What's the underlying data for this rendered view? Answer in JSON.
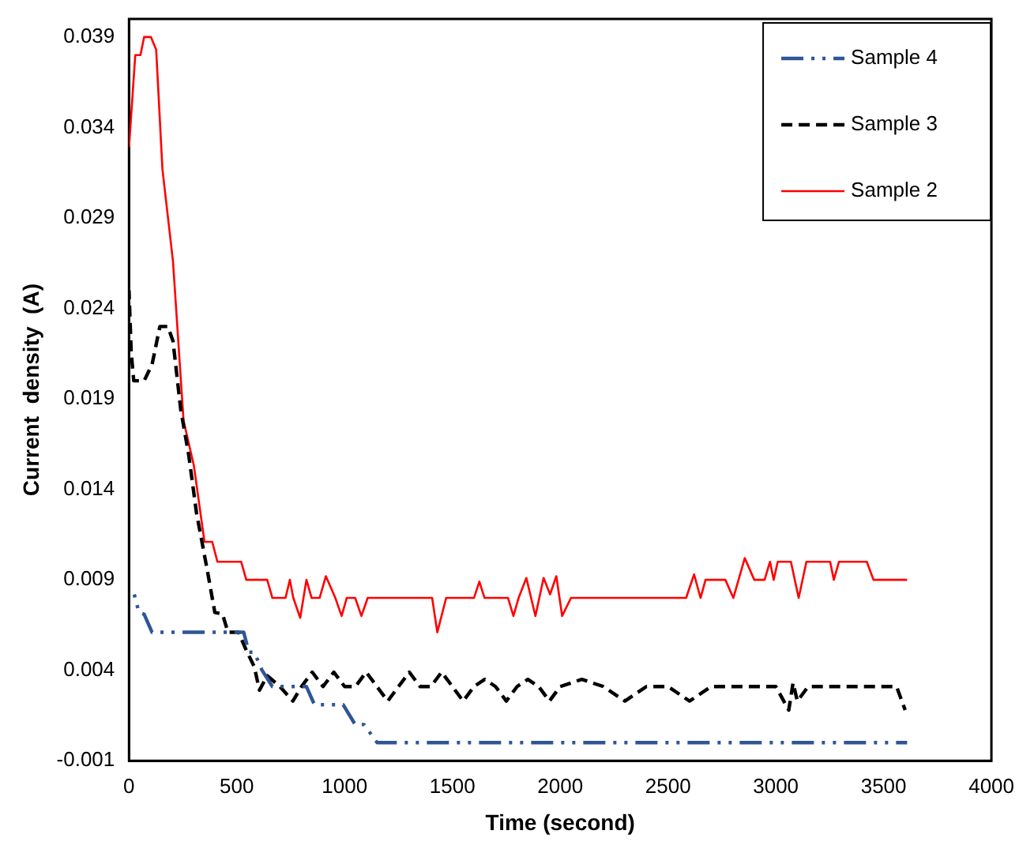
{
  "chart_data": {
    "type": "line",
    "xlabel": "Time (second)",
    "ylabel": "Current  density  (A)",
    "xlim": [
      0,
      4000
    ],
    "xticks": [
      0,
      500,
      1000,
      1500,
      2000,
      2500,
      3000,
      3500,
      4000
    ],
    "ylim": [
      -0.001,
      0.04
    ],
    "yticks": [
      -0.001,
      0.004,
      0.009,
      0.014,
      0.019,
      0.024,
      0.029,
      0.034,
      0.039
    ],
    "grid": false,
    "legend": "top right",
    "marker": "none",
    "series": [
      {
        "name": "Sample 4",
        "color": "#2f5597",
        "line_style": "dashdot",
        "x": [
          0,
          22,
          46,
          70,
          107,
          423,
          532,
          556,
          581,
          617,
          665,
          823,
          860,
          993,
          1049,
          1090,
          1151,
          3609
        ],
        "values": [
          0.0083,
          0.0083,
          0.0072,
          0.0071,
          0.0061,
          0.0061,
          0.0061,
          0.005,
          0.005,
          0.004,
          0.0031,
          0.0031,
          0.0021,
          0.0021,
          0.001,
          0.001,
          0.0,
          0.0
        ]
      },
      {
        "name": "Sample 3",
        "color": "#000000",
        "line_style": "dashed",
        "x": [
          0,
          10,
          22,
          70,
          107,
          143,
          180,
          204,
          240,
          277,
          313,
          362,
          398,
          434,
          459,
          508,
          544,
          581,
          605,
          641,
          700,
          760,
          800,
          850,
          900,
          950,
          1000,
          1050,
          1100,
          1150,
          1200,
          1250,
          1300,
          1350,
          1400,
          1450,
          1500,
          1550,
          1600,
          1650,
          1700,
          1750,
          1800,
          1850,
          1900,
          1950,
          2000,
          2100,
          2200,
          2300,
          2400,
          2500,
          2600,
          2700,
          2800,
          3000,
          3060,
          3080,
          3100,
          3150,
          3200,
          3400,
          3560,
          3600
        ],
        "values": [
          0.025,
          0.0216,
          0.02,
          0.02,
          0.0209,
          0.023,
          0.023,
          0.0222,
          0.0184,
          0.0159,
          0.0127,
          0.0096,
          0.0072,
          0.0071,
          0.0061,
          0.0061,
          0.0051,
          0.0042,
          0.0029,
          0.0037,
          0.0031,
          0.0023,
          0.0031,
          0.0039,
          0.0031,
          0.0039,
          0.0031,
          0.0031,
          0.0039,
          0.0031,
          0.0023,
          0.0031,
          0.0039,
          0.0031,
          0.0031,
          0.0039,
          0.0031,
          0.0023,
          0.0031,
          0.0035,
          0.0031,
          0.0023,
          0.0031,
          0.0035,
          0.0031,
          0.0023,
          0.0031,
          0.0035,
          0.0031,
          0.0023,
          0.0031,
          0.0031,
          0.0023,
          0.0031,
          0.0031,
          0.0031,
          0.0018,
          0.0033,
          0.0023,
          0.0031,
          0.0031,
          0.0031,
          0.0031,
          0.0018
        ]
      },
      {
        "name": "Sample 2",
        "color": "#ff0000",
        "line_style": "solid",
        "x": [
          0,
          29,
          53,
          70,
          102,
          126,
          155,
          204,
          253,
          301,
          350,
          386,
          410,
          520,
          544,
          641,
          665,
          726,
          746,
          762,
          794,
          823,
          847,
          884,
          913,
          957,
          986,
          1010,
          1049,
          1078,
          1107,
          1406,
          1430,
          1471,
          1600,
          1625,
          1649,
          1758,
          1783,
          1807,
          1843,
          1885,
          1923,
          1953,
          1982,
          2009,
          2050,
          2584,
          2621,
          2651,
          2674,
          2766,
          2803,
          2856,
          2900,
          2948,
          2973,
          2990,
          3009,
          3070,
          3106,
          3142,
          3252,
          3269,
          3293,
          3422,
          3453,
          3609
        ],
        "values": [
          0.0329,
          0.038,
          0.038,
          0.039,
          0.039,
          0.0383,
          0.0317,
          0.0266,
          0.0178,
          0.0153,
          0.0111,
          0.0111,
          0.01,
          0.01,
          0.009,
          0.009,
          0.008,
          0.008,
          0.009,
          0.008,
          0.0069,
          0.009,
          0.008,
          0.008,
          0.0092,
          0.008,
          0.007,
          0.008,
          0.008,
          0.007,
          0.008,
          0.008,
          0.0061,
          0.008,
          0.008,
          0.0089,
          0.008,
          0.008,
          0.007,
          0.008,
          0.0091,
          0.007,
          0.0091,
          0.0082,
          0.0092,
          0.007,
          0.008,
          0.008,
          0.0093,
          0.008,
          0.009,
          0.009,
          0.008,
          0.0102,
          0.009,
          0.009,
          0.01,
          0.009,
          0.01,
          0.01,
          0.008,
          0.01,
          0.01,
          0.009,
          0.01,
          0.01,
          0.009,
          0.009
        ]
      }
    ]
  }
}
